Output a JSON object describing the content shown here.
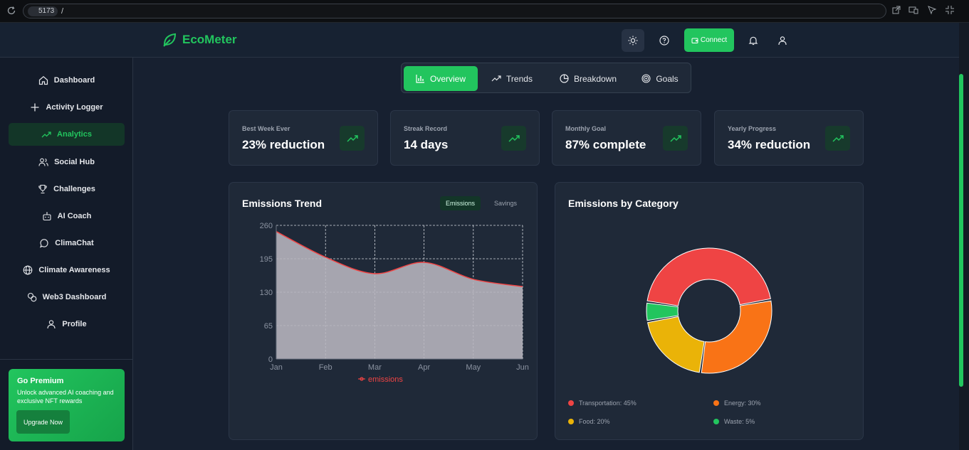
{
  "browser": {
    "site": "5173",
    "path": "/"
  },
  "header": {
    "logo_text": "EcoMeter",
    "connect_label": "Connect",
    "brand_color": "#22c55e"
  },
  "sidebar": {
    "items": [
      {
        "label": "Dashboard",
        "icon": "home-icon"
      },
      {
        "label": "Activity Logger",
        "icon": "plus-icon"
      },
      {
        "label": "Analytics",
        "icon": "trending-up-icon"
      },
      {
        "label": "Social Hub",
        "icon": "users-icon"
      },
      {
        "label": "Challenges",
        "icon": "trophy-icon"
      },
      {
        "label": "AI Coach",
        "icon": "bot-icon"
      },
      {
        "label": "ClimaChat",
        "icon": "chat-bubble-icon"
      },
      {
        "label": "Climate Awareness",
        "icon": "globe-icon"
      },
      {
        "label": "Web3 Dashboard",
        "icon": "coins-icon"
      },
      {
        "label": "Profile",
        "icon": "user-icon"
      }
    ],
    "active": "Analytics",
    "premium": {
      "title": "Go Premium",
      "description": "Unlock advanced AI coaching and exclusive NFT rewards",
      "button": "Upgrade Now"
    }
  },
  "tabs": [
    {
      "label": "Overview",
      "icon": "bar-chart-icon"
    },
    {
      "label": "Trends",
      "icon": "trending-up-icon"
    },
    {
      "label": "Breakdown",
      "icon": "pie-chart-icon"
    },
    {
      "label": "Goals",
      "icon": "target-icon"
    }
  ],
  "active_tab": "Overview",
  "stats": [
    {
      "label": "Best Week Ever",
      "value": "23% reduction"
    },
    {
      "label": "Streak Record",
      "value": "14 days"
    },
    {
      "label": "Monthly Goal",
      "value": "87% complete"
    },
    {
      "label": "Yearly Progress",
      "value": "34% reduction"
    }
  ],
  "trend_card": {
    "title": "Emissions Trend",
    "toggle": [
      "Emissions",
      "Savings"
    ],
    "toggle_active": "Emissions"
  },
  "category_card": {
    "title": "Emissions by Category"
  },
  "chart_data": [
    {
      "type": "area",
      "title": "Emissions Trend",
      "categories": [
        "Jan",
        "Feb",
        "Mar",
        "Apr",
        "May",
        "Jun"
      ],
      "series": [
        {
          "name": "emissions",
          "values": [
            248,
            198,
            166,
            188,
            155,
            141
          ],
          "color": "#ef4444"
        }
      ],
      "ylim": [
        0,
        260
      ],
      "yticks": [
        0,
        65,
        130,
        195,
        260
      ],
      "grid": true,
      "legend": "bottom"
    },
    {
      "type": "pie",
      "title": "Emissions by Category",
      "labels": [
        "Transportation",
        "Energy",
        "Food",
        "Waste"
      ],
      "values": [
        45,
        30,
        20,
        5
      ],
      "legend_labels": [
        "Transportation: 45%",
        "Energy: 30%",
        "Food: 20%",
        "Waste: 5%"
      ],
      "colors": [
        "#ef4444",
        "#f97316",
        "#eab308",
        "#22c55e"
      ],
      "legend": "bottom"
    }
  ]
}
